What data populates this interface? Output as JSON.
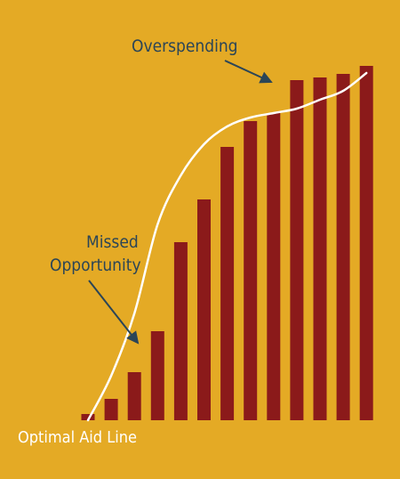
{
  "chart_data": {
    "type": "bar",
    "title": "",
    "xlabel": "",
    "ylabel": "",
    "ylim": [
      0,
      400
    ],
    "grid": false,
    "legend": "none",
    "values": [
      7,
      24,
      54,
      100,
      200,
      248,
      307,
      336,
      345,
      382,
      385,
      389,
      398
    ],
    "line_values": [
      0,
      50,
      120,
      220,
      275,
      310,
      330,
      340,
      345,
      350,
      360,
      370,
      390
    ],
    "line_name": "Optimal Aid Line",
    "annotations": [
      {
        "id": "overspending",
        "text": "Overspending"
      },
      {
        "id": "missed",
        "lines": [
          "Missed",
          "Opportunity"
        ]
      }
    ],
    "colors": {
      "background": "#E4AA25",
      "bars": "#8B1A1A",
      "line": "#FFFFFF",
      "annotation": "#2B4557"
    }
  }
}
